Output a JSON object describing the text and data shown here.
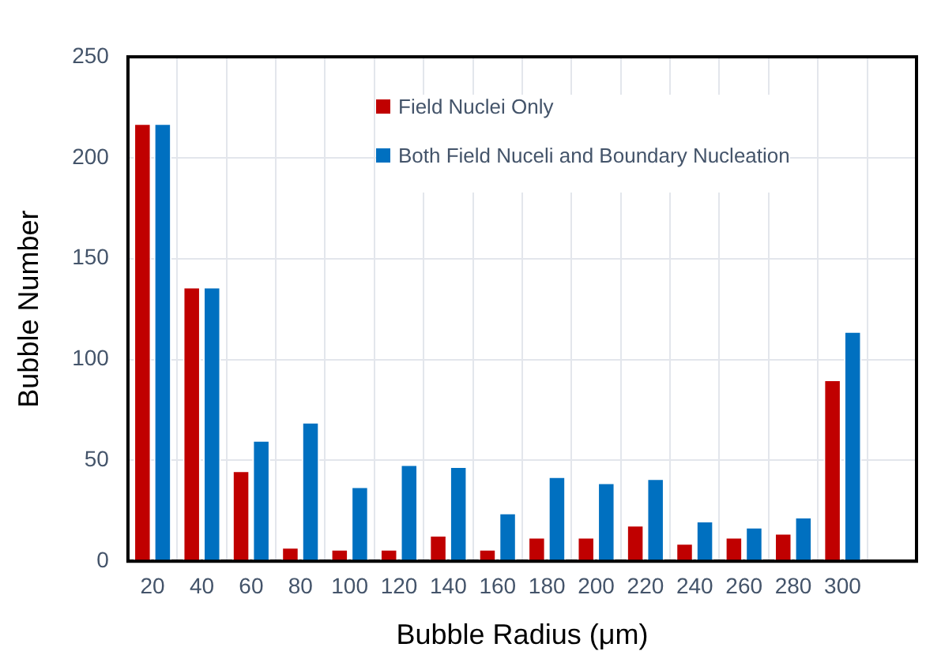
{
  "chart_data": {
    "type": "bar",
    "xlabel": "Bubble Radius (μm)",
    "ylabel": "Bubble Number",
    "categories": [
      "20",
      "40",
      "60",
      "80",
      "100",
      "120",
      "140",
      "160",
      "180",
      "200",
      "220",
      "240",
      "260",
      "280",
      "300",
      null
    ],
    "series": [
      {
        "name": "Field Nuclei Only",
        "color": "#c00000",
        "values": [
          217,
          136,
          45,
          7,
          6,
          6,
          13,
          6,
          12,
          12,
          18,
          9,
          12,
          14,
          90,
          null
        ]
      },
      {
        "name": "Both Field Nuceli and Boundary Nucleation",
        "color": "#0070c0",
        "values": [
          217,
          136,
          60,
          69,
          37,
          48,
          47,
          24,
          42,
          39,
          41,
          20,
          17,
          22,
          114,
          null
        ]
      }
    ],
    "ylim": [
      0,
      250
    ],
    "yticks": [
      0,
      50,
      100,
      150,
      200,
      250
    ],
    "grid": true,
    "legend": "top"
  }
}
